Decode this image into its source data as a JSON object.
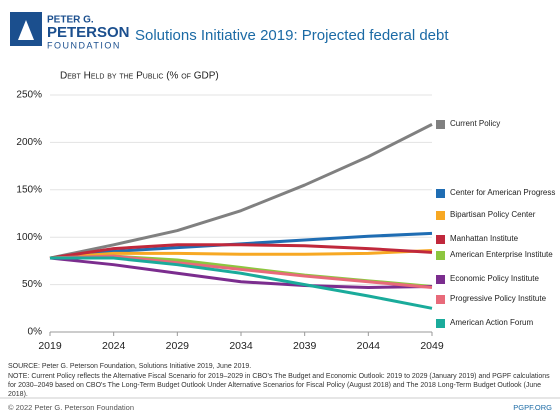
{
  "logo": {
    "line1": "PETER G.",
    "line2": "PETERSON",
    "line3": "FOUNDATION"
  },
  "chart_data": {
    "type": "line",
    "title": "Solutions Initiative 2019: Projected federal debt",
    "y_axis_title": "Debt Held by the Public (% of GDP)",
    "x": [
      2019,
      2024,
      2029,
      2034,
      2039,
      2044,
      2049
    ],
    "xlim": [
      2019,
      2049
    ],
    "xticks": [
      2019,
      2024,
      2029,
      2034,
      2039,
      2044,
      2049
    ],
    "ylim": [
      0,
      250
    ],
    "yticks": [
      {
        "value": 0,
        "label": "0%"
      },
      {
        "value": 50,
        "label": "50%"
      },
      {
        "value": 100,
        "label": "100%"
      },
      {
        "value": 150,
        "label": "150%"
      },
      {
        "value": 200,
        "label": "200%"
      },
      {
        "value": 250,
        "label": "250%"
      }
    ],
    "grid": true,
    "series": [
      {
        "name": "Current Policy",
        "color": "#808080",
        "values": [
          78,
          92,
          107,
          128,
          155,
          185,
          219
        ]
      },
      {
        "name": "Center for American Progress",
        "color": "#1f6db3",
        "values": [
          78,
          85,
          89,
          93,
          97,
          101,
          104
        ]
      },
      {
        "name": "Bipartisan Policy Center",
        "color": "#f7a823",
        "values": [
          78,
          83,
          83,
          82,
          82,
          83,
          86
        ]
      },
      {
        "name": "Manhattan Institute",
        "color": "#c0283c",
        "values": [
          78,
          88,
          92,
          92,
          91,
          88,
          84
        ]
      },
      {
        "name": "American Enterprise Institute",
        "color": "#8dc63f",
        "values": [
          78,
          80,
          76,
          68,
          60,
          54,
          48
        ]
      },
      {
        "name": "Economic Policy Institute",
        "color": "#7b2d8e",
        "values": [
          78,
          71,
          62,
          53,
          49,
          47,
          48
        ]
      },
      {
        "name": "Progressive Policy Institute",
        "color": "#e86a7a",
        "values": [
          78,
          80,
          73,
          66,
          59,
          53,
          47
        ]
      },
      {
        "name": "American Action Forum",
        "color": "#1aab9b",
        "values": [
          78,
          78,
          71,
          62,
          50,
          38,
          25
        ]
      }
    ]
  },
  "source": "SOURCE: Peter G. Peterson Foundation, Solutions Initiative 2019, June 2019.",
  "note": "NOTE: Current Policy reflects the Alternative Fiscal Scenario for 2019–2029 in CBO's The Budget and Economic Outlook: 2019 to 2029 (January 2019) and PGPF calculations for 2030–2049 based on CBO's The Long-Term Budget Outlook Under Alternative Scenarios for Fiscal Policy (August 2018) and The 2018 Long-Term Budget Outlook (June 2018).",
  "copyright": "© 2022 Peter G. Peterson Foundation",
  "site": "PGPF.ORG"
}
